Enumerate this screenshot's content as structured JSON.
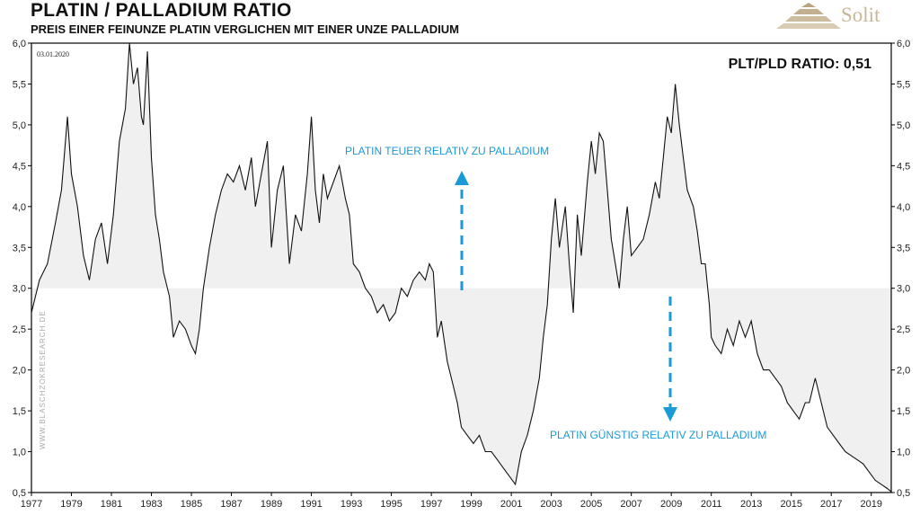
{
  "header": {
    "title": "PLATIN / PALLADIUM RATIO",
    "subtitle": "PREIS EINER FEINUNZE PLATIN VERGLICHEN MIT EINER UNZE PALLADIUM",
    "brand": "Solit"
  },
  "colors": {
    "line": "#111111",
    "fill": "#f0f0f0",
    "accent": "#1a9ad6"
  },
  "chart_data": {
    "type": "line",
    "title": "PLATIN / PALLADIUM RATIO",
    "subtitle": "PREIS EINER FEINUNZE PLATIN VERGLICHEN MIT EINER UNZE PALLADIUM",
    "date_label": "03.01.2020",
    "ratio_label": "PLT/PLD RATIO: 0,51",
    "watermark": "WWW.BLASCHZOKRESEARCH.DE",
    "annotation_up": "PLATIN TEUER RELATIV ZU PALLADIUM",
    "annotation_down": "PLATIN GÜNSTIG RELATIV ZU PALLADIUM",
    "baseline": 3.0,
    "ylim": [
      0.5,
      6.0
    ],
    "xlim": [
      1977,
      2020
    ],
    "y_ticks": [
      "6,0",
      "5,5",
      "5,0",
      "4,5",
      "4,0",
      "3,5",
      "3,0",
      "2,5",
      "2,0",
      "1,5",
      "1,0",
      "0,5"
    ],
    "x_ticks": [
      "1977",
      "1979",
      "1981",
      "1983",
      "1985",
      "1987",
      "1989",
      "1991",
      "1993",
      "1995",
      "1997",
      "1999",
      "2001",
      "2003",
      "2005",
      "2007",
      "2009",
      "2011",
      "2013",
      "2015",
      "2017",
      "2019"
    ],
    "series": [
      {
        "name": "Platin/Palladium",
        "points": [
          [
            1977.0,
            2.7
          ],
          [
            1977.4,
            3.1
          ],
          [
            1977.8,
            3.3
          ],
          [
            1978.2,
            3.8
          ],
          [
            1978.5,
            4.2
          ],
          [
            1978.8,
            5.1
          ],
          [
            1979.0,
            4.4
          ],
          [
            1979.3,
            4.0
          ],
          [
            1979.6,
            3.4
          ],
          [
            1979.9,
            3.1
          ],
          [
            1980.2,
            3.6
          ],
          [
            1980.5,
            3.8
          ],
          [
            1980.8,
            3.3
          ],
          [
            1981.1,
            3.9
          ],
          [
            1981.4,
            4.8
          ],
          [
            1981.7,
            5.2
          ],
          [
            1981.9,
            6.0
          ],
          [
            1982.1,
            5.5
          ],
          [
            1982.3,
            5.7
          ],
          [
            1982.5,
            5.1
          ],
          [
            1982.6,
            5.0
          ],
          [
            1982.8,
            5.9
          ],
          [
            1983.0,
            4.6
          ],
          [
            1983.2,
            3.9
          ],
          [
            1983.4,
            3.6
          ],
          [
            1983.6,
            3.2
          ],
          [
            1983.9,
            2.9
          ],
          [
            1984.1,
            2.4
          ],
          [
            1984.4,
            2.6
          ],
          [
            1984.7,
            2.5
          ],
          [
            1985.0,
            2.3
          ],
          [
            1985.2,
            2.2
          ],
          [
            1985.4,
            2.5
          ],
          [
            1985.6,
            3.0
          ],
          [
            1985.9,
            3.5
          ],
          [
            1986.2,
            3.9
          ],
          [
            1986.5,
            4.2
          ],
          [
            1986.8,
            4.4
          ],
          [
            1987.1,
            4.3
          ],
          [
            1987.4,
            4.5
          ],
          [
            1987.7,
            4.2
          ],
          [
            1988.0,
            4.6
          ],
          [
            1988.2,
            4.0
          ],
          [
            1988.5,
            4.4
          ],
          [
            1988.8,
            4.8
          ],
          [
            1989.0,
            3.5
          ],
          [
            1989.3,
            4.2
          ],
          [
            1989.6,
            4.5
          ],
          [
            1989.9,
            3.3
          ],
          [
            1990.2,
            3.9
          ],
          [
            1990.5,
            3.7
          ],
          [
            1990.8,
            4.4
          ],
          [
            1991.0,
            5.1
          ],
          [
            1991.2,
            4.2
          ],
          [
            1991.4,
            3.8
          ],
          [
            1991.6,
            4.4
          ],
          [
            1991.8,
            4.1
          ],
          [
            1992.1,
            4.3
          ],
          [
            1992.4,
            4.5
          ],
          [
            1992.7,
            4.1
          ],
          [
            1992.9,
            3.9
          ],
          [
            1993.1,
            3.3
          ],
          [
            1993.4,
            3.2
          ],
          [
            1993.7,
            3.0
          ],
          [
            1994.0,
            2.9
          ],
          [
            1994.3,
            2.7
          ],
          [
            1994.6,
            2.8
          ],
          [
            1994.9,
            2.6
          ],
          [
            1995.2,
            2.7
          ],
          [
            1995.5,
            3.0
          ],
          [
            1995.8,
            2.9
          ],
          [
            1996.1,
            3.1
          ],
          [
            1996.4,
            3.2
          ],
          [
            1996.7,
            3.1
          ],
          [
            1996.9,
            3.3
          ],
          [
            1997.1,
            3.2
          ],
          [
            1997.3,
            2.4
          ],
          [
            1997.5,
            2.6
          ],
          [
            1997.8,
            2.1
          ],
          [
            1998.1,
            1.8
          ],
          [
            1998.3,
            1.6
          ],
          [
            1998.5,
            1.3
          ],
          [
            1998.8,
            1.2
          ],
          [
            1999.1,
            1.1
          ],
          [
            1999.4,
            1.2
          ],
          [
            1999.7,
            1.0
          ],
          [
            2000.0,
            1.0
          ],
          [
            2000.3,
            0.9
          ],
          [
            2000.6,
            0.8
          ],
          [
            2000.9,
            0.7
          ],
          [
            2001.2,
            0.6
          ],
          [
            2001.5,
            1.0
          ],
          [
            2001.8,
            1.2
          ],
          [
            2002.1,
            1.5
          ],
          [
            2002.4,
            1.9
          ],
          [
            2002.6,
            2.4
          ],
          [
            2002.8,
            2.8
          ],
          [
            2003.0,
            3.6
          ],
          [
            2003.2,
            4.1
          ],
          [
            2003.4,
            3.5
          ],
          [
            2003.7,
            4.0
          ],
          [
            2003.9,
            3.3
          ],
          [
            2004.1,
            2.7
          ],
          [
            2004.3,
            3.9
          ],
          [
            2004.5,
            3.4
          ],
          [
            2004.8,
            4.3
          ],
          [
            2005.0,
            4.8
          ],
          [
            2005.2,
            4.4
          ],
          [
            2005.4,
            4.9
          ],
          [
            2005.6,
            4.8
          ],
          [
            2005.8,
            4.2
          ],
          [
            2006.0,
            3.6
          ],
          [
            2006.2,
            3.3
          ],
          [
            2006.4,
            3.0
          ],
          [
            2006.6,
            3.6
          ],
          [
            2006.8,
            4.0
          ],
          [
            2007.0,
            3.4
          ],
          [
            2007.3,
            3.5
          ],
          [
            2007.6,
            3.6
          ],
          [
            2007.9,
            3.9
          ],
          [
            2008.2,
            4.3
          ],
          [
            2008.4,
            4.1
          ],
          [
            2008.6,
            4.6
          ],
          [
            2008.8,
            5.1
          ],
          [
            2009.0,
            4.9
          ],
          [
            2009.2,
            5.5
          ],
          [
            2009.4,
            5.0
          ],
          [
            2009.6,
            4.6
          ],
          [
            2009.8,
            4.2
          ],
          [
            2010.1,
            4.0
          ],
          [
            2010.3,
            3.7
          ],
          [
            2010.5,
            3.3
          ],
          [
            2010.7,
            3.3
          ],
          [
            2010.9,
            2.8
          ],
          [
            2011.0,
            2.4
          ],
          [
            2011.2,
            2.3
          ],
          [
            2011.5,
            2.2
          ],
          [
            2011.8,
            2.5
          ],
          [
            2012.1,
            2.3
          ],
          [
            2012.4,
            2.6
          ],
          [
            2012.7,
            2.4
          ],
          [
            2013.0,
            2.6
          ],
          [
            2013.3,
            2.2
          ],
          [
            2013.6,
            2.0
          ],
          [
            2013.9,
            2.0
          ],
          [
            2014.2,
            1.9
          ],
          [
            2014.5,
            1.8
          ],
          [
            2014.8,
            1.6
          ],
          [
            2015.1,
            1.5
          ],
          [
            2015.4,
            1.4
          ],
          [
            2015.7,
            1.6
          ],
          [
            2015.9,
            1.6
          ],
          [
            2016.2,
            1.9
          ],
          [
            2016.5,
            1.6
          ],
          [
            2016.8,
            1.3
          ],
          [
            2017.1,
            1.2
          ],
          [
            2017.4,
            1.1
          ],
          [
            2017.7,
            1.0
          ],
          [
            2018.0,
            0.95
          ],
          [
            2018.3,
            0.9
          ],
          [
            2018.6,
            0.85
          ],
          [
            2018.9,
            0.75
          ],
          [
            2019.2,
            0.65
          ],
          [
            2019.5,
            0.6
          ],
          [
            2019.8,
            0.55
          ],
          [
            2020.0,
            0.51
          ]
        ]
      }
    ]
  }
}
